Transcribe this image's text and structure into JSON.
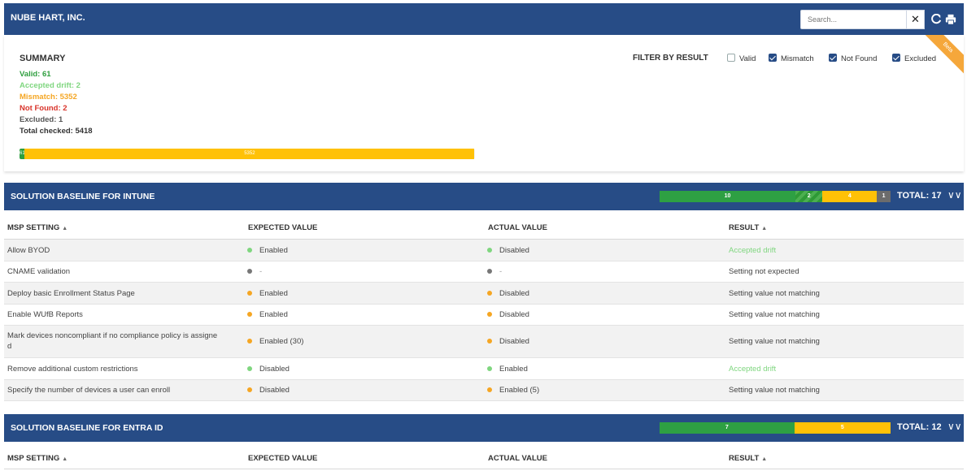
{
  "header": {
    "org_name": "NUBE HART, INC.",
    "search_placeholder": "Search...",
    "clear_icon": "close-icon",
    "refresh_icon": "refresh-icon",
    "print_icon": "print-icon"
  },
  "summary": {
    "title": "SUMMARY",
    "valid": "Valid: 61",
    "accepted_drift": "Accepted drift: 2",
    "mismatch": "Mismatch: 5352",
    "not_found": "Not Found: 2",
    "excluded": "Excluded: 1",
    "total_checked": "Total checked: 5418",
    "progress": {
      "valid_label": "61",
      "mismatch_label": "5352",
      "valid_value": 61,
      "accepted_value": 2,
      "mismatch_value": 5352,
      "not_found_value": 2,
      "excluded_value": 1,
      "total": 5418
    },
    "beta_badge": "Beta"
  },
  "filter": {
    "label": "FILTER BY RESULT",
    "options": [
      {
        "label": "Valid",
        "checked": false
      },
      {
        "label": "Mismatch",
        "checked": true
      },
      {
        "label": "Not Found",
        "checked": true
      },
      {
        "label": "Excluded",
        "checked": true
      }
    ]
  },
  "colors": {
    "header_bg": "#274c86",
    "valid": "#2e9e3e",
    "accepted": "#7fd67f",
    "mismatch": "#f5a623",
    "not_found": "#d9342b",
    "excluded": "#666666",
    "neutral": "#777777"
  },
  "sections": [
    {
      "title": "SOLUTION BASELINE FOR INTUNE",
      "total": "TOTAL: 17",
      "bar": {
        "valid": "10",
        "accepted": "2",
        "mismatch": "4",
        "excluded": "1",
        "valid_value": 10,
        "accepted_value": 2,
        "mismatch_value": 4,
        "excluded_value": 1,
        "total_value": 17
      },
      "columns": {
        "setting": "MSP SETTING",
        "expected": "EXPECTED VALUE",
        "actual": "ACTUAL VALUE",
        "result": "RESULT"
      },
      "rows": [
        {
          "setting": "Allow BYOD",
          "expected": "Enabled",
          "expected_status": "accepted",
          "actual": "Disabled",
          "actual_status": "accepted",
          "result": "Accepted drift",
          "result_status": "accepted"
        },
        {
          "setting": "CNAME validation",
          "expected": "-",
          "expected_status": "neutral",
          "actual": "-",
          "actual_status": "neutral",
          "result": "Setting not expected",
          "result_status": "plain"
        },
        {
          "setting": "Deploy basic Enrollment Status Page",
          "expected": "Enabled",
          "expected_status": "mismatch",
          "actual": "Disabled",
          "actual_status": "mismatch",
          "result": "Setting value not matching",
          "result_status": "plain"
        },
        {
          "setting": "Enable WUfB Reports",
          "expected": "Enabled",
          "expected_status": "mismatch",
          "actual": "Disabled",
          "actual_status": "mismatch",
          "result": "Setting value not matching",
          "result_status": "plain"
        },
        {
          "setting": "Mark devices noncompliant if no compliance policy is assigne",
          "setting2": "d",
          "expected": "Enabled (30)",
          "expected_status": "mismatch",
          "actual": "Disabled",
          "actual_status": "mismatch",
          "result": "Setting value not matching",
          "result_status": "plain"
        },
        {
          "setting": "Remove additional custom restrictions",
          "expected": "Disabled",
          "expected_status": "accepted",
          "actual": "Enabled",
          "actual_status": "accepted",
          "result": "Accepted drift",
          "result_status": "accepted"
        },
        {
          "setting": "Specify the number of devices a user can enroll",
          "expected": "Disabled",
          "expected_status": "mismatch",
          "actual": "Enabled (5)",
          "actual_status": "mismatch",
          "result": "Setting value not matching",
          "result_status": "plain"
        }
      ]
    },
    {
      "title": "SOLUTION BASELINE FOR ENTRA ID",
      "total": "TOTAL: 12",
      "bar": {
        "valid": "7",
        "mismatch": "5",
        "valid_value": 7,
        "mismatch_value": 5,
        "total_value": 12
      },
      "columns": {
        "setting": "MSP SETTING",
        "expected": "EXPECTED VALUE",
        "actual": "ACTUAL VALUE",
        "result": "RESULT"
      }
    }
  ]
}
